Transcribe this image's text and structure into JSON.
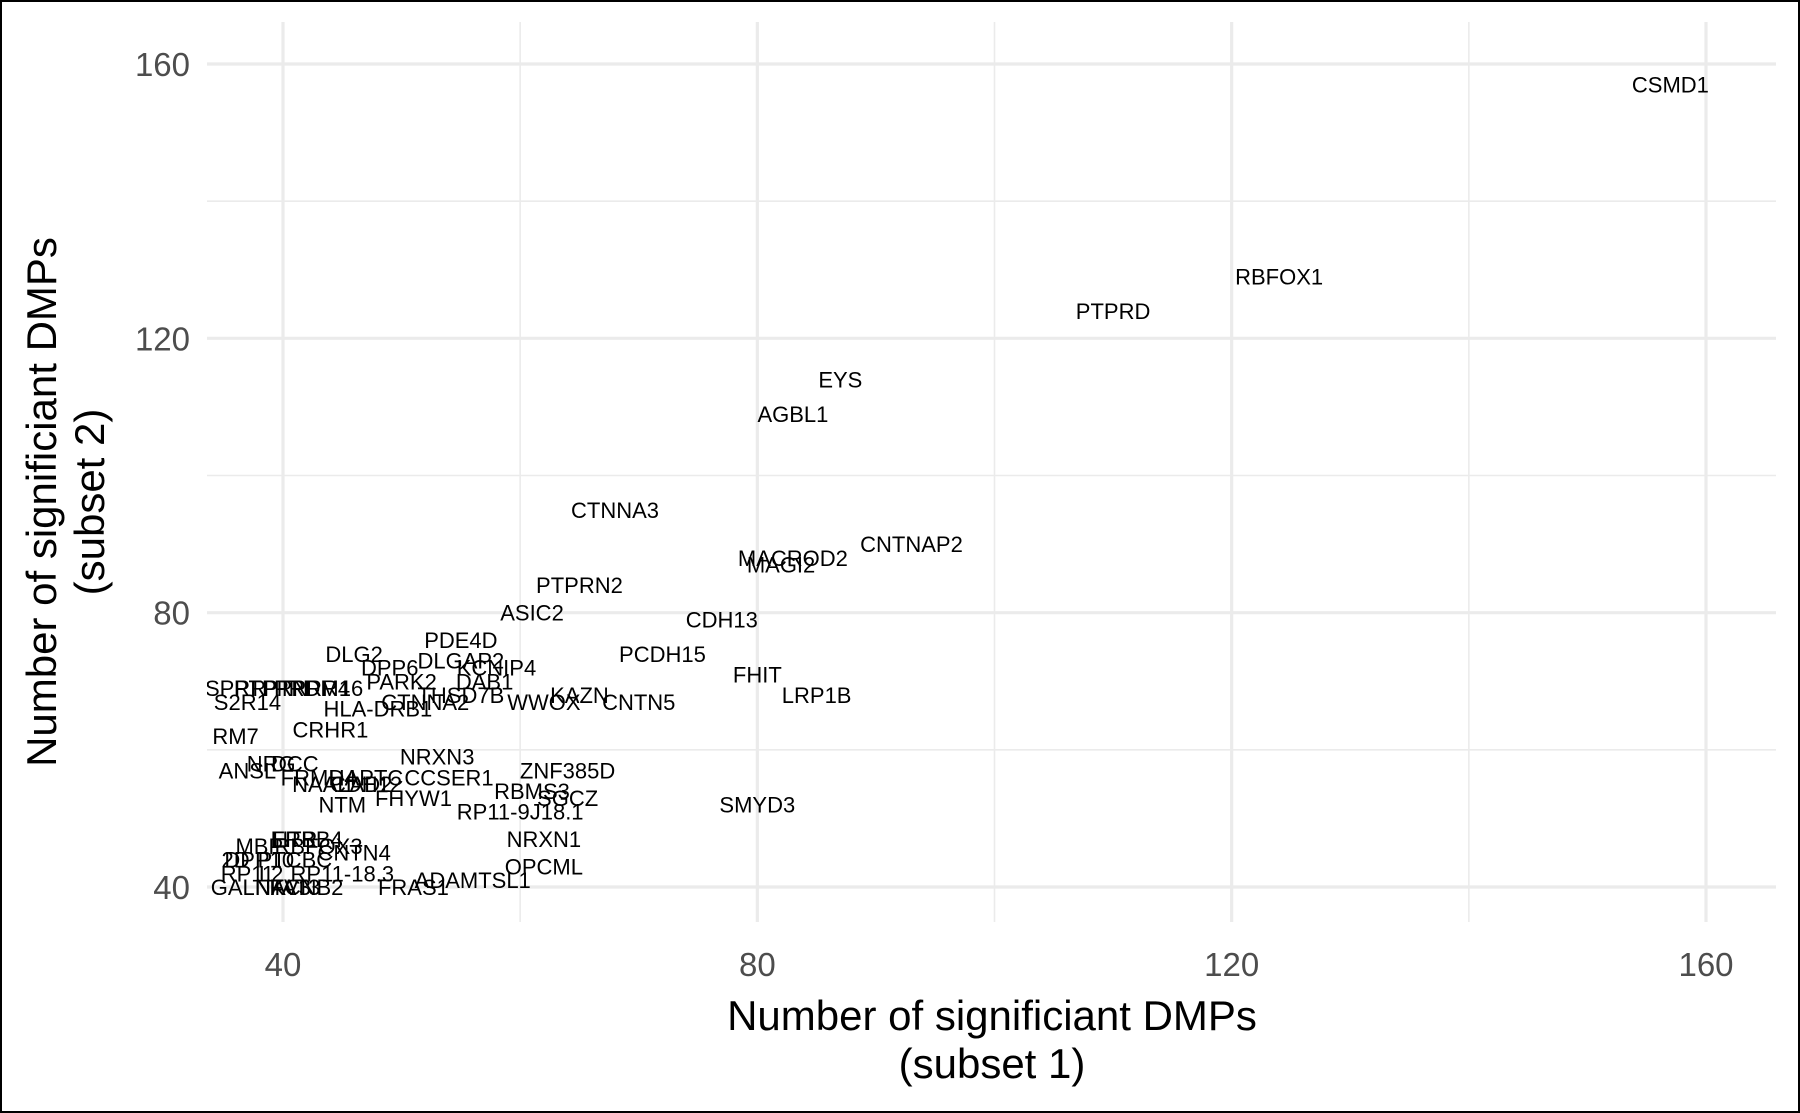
{
  "chart_data": {
    "type": "scatter",
    "title": "",
    "xlabel": [
      "Number of significiant DMPs",
      "(subset 1)"
    ],
    "ylabel": [
      "Number of significiant DMPs",
      "(subset 2)"
    ],
    "xlim": [
      40,
      160
    ],
    "ylim": [
      40,
      160
    ],
    "x_ticks": [
      40,
      80,
      120,
      160
    ],
    "y_ticks": [
      40,
      80,
      120,
      160
    ],
    "grid": true,
    "points": [
      {
        "label": "CSMD1",
        "x": 157,
        "y": 157
      },
      {
        "label": "RBFOX1",
        "x": 124,
        "y": 129
      },
      {
        "label": "PTPRD",
        "x": 110,
        "y": 124
      },
      {
        "label": "EYS",
        "x": 87,
        "y": 114
      },
      {
        "label": "AGBL1",
        "x": 83,
        "y": 109
      },
      {
        "label": "CTNNA3",
        "x": 68,
        "y": 95
      },
      {
        "label": "CNTNAP2",
        "x": 93,
        "y": 90
      },
      {
        "label": "MACROD2",
        "x": 83,
        "y": 88
      },
      {
        "label": "MAGI2",
        "x": 82,
        "y": 87
      },
      {
        "label": "PTPRN2",
        "x": 65,
        "y": 84
      },
      {
        "label": "ASIC2",
        "x": 61,
        "y": 80
      },
      {
        "label": "CDH13",
        "x": 77,
        "y": 79
      },
      {
        "label": "PDE4D",
        "x": 55,
        "y": 76
      },
      {
        "label": "PCDH15",
        "x": 72,
        "y": 74
      },
      {
        "label": "DLG2",
        "x": 46,
        "y": 74
      },
      {
        "label": "DLGAP2",
        "x": 55,
        "y": 73
      },
      {
        "label": "KCNIP4",
        "x": 58,
        "y": 72
      },
      {
        "label": "DPP6",
        "x": 49,
        "y": 72
      },
      {
        "label": "FHIT",
        "x": 80,
        "y": 71
      },
      {
        "label": "DAB1",
        "x": 57,
        "y": 70
      },
      {
        "label": "PARK2",
        "x": 50,
        "y": 70
      },
      {
        "label": "PRDM16",
        "x": 43,
        "y": 69
      },
      {
        "label": "PTPRR4",
        "x": 42,
        "y": 69
      },
      {
        "label": "PTPRN",
        "x": 39,
        "y": 69
      },
      {
        "label": "SPRR",
        "x": 36,
        "y": 69
      },
      {
        "label": "LRP1B",
        "x": 85,
        "y": 68
      },
      {
        "label": "KAZN",
        "x": 65,
        "y": 68
      },
      {
        "label": "THSD7B",
        "x": 55,
        "y": 68
      },
      {
        "label": "S2R14",
        "x": 37,
        "y": 67
      },
      {
        "label": "CTNNA2",
        "x": 52,
        "y": 67
      },
      {
        "label": "WWOX",
        "x": 62,
        "y": 67
      },
      {
        "label": "CNTN5",
        "x": 70,
        "y": 67
      },
      {
        "label": "HLA-DRB1",
        "x": 48,
        "y": 66
      },
      {
        "label": "CRHR1",
        "x": 44,
        "y": 63
      },
      {
        "label": "RM7",
        "x": 36,
        "y": 62
      },
      {
        "label": "NRXN3",
        "x": 53,
        "y": 59
      },
      {
        "label": "DCC",
        "x": 41,
        "y": 58
      },
      {
        "label": "NRG",
        "x": 39,
        "y": 58
      },
      {
        "label": "ZNF385D",
        "x": 64,
        "y": 57
      },
      {
        "label": "ANSL",
        "x": 37,
        "y": 57
      },
      {
        "label": "CCSER1",
        "x": 54,
        "y": 56
      },
      {
        "label": "HAPTC",
        "x": 47,
        "y": 56
      },
      {
        "label": "FRMD4",
        "x": 43,
        "y": 56
      },
      {
        "label": "NAALAD2",
        "x": 45,
        "y": 55
      },
      {
        "label": "RBMS3",
        "x": 61,
        "y": 54
      },
      {
        "label": "CDH12",
        "x": 47,
        "y": 55
      },
      {
        "label": "SGCZ",
        "x": 64,
        "y": 53
      },
      {
        "label": "FHYW1",
        "x": 51,
        "y": 53
      },
      {
        "label": "NTM",
        "x": 45,
        "y": 52
      },
      {
        "label": "SMYD3",
        "x": 80,
        "y": 52
      },
      {
        "label": "RP11-9J18.1",
        "x": 60,
        "y": 51
      },
      {
        "label": "NRXN1",
        "x": 62,
        "y": 47
      },
      {
        "label": "HTR",
        "x": 41,
        "y": 47
      },
      {
        "label": "ERBB4",
        "x": 42,
        "y": 47
      },
      {
        "label": "RBFOX3",
        "x": 43,
        "y": 46
      },
      {
        "label": "MBP",
        "x": 38,
        "y": 46
      },
      {
        "label": "CNTN4",
        "x": 46,
        "y": 45
      },
      {
        "label": "DPP10",
        "x": 38,
        "y": 44
      },
      {
        "label": "PTCBC",
        "x": 41,
        "y": 44
      },
      {
        "label": "OPCML",
        "x": 62,
        "y": 43
      },
      {
        "label": "2D",
        "x": 36,
        "y": 44
      },
      {
        "label": "RP11",
        "x": 37,
        "y": 42
      },
      {
        "label": "L2",
        "x": 39,
        "y": 42
      },
      {
        "label": "RP11-18.3",
        "x": 45,
        "y": 42
      },
      {
        "label": "ADAMTSL1",
        "x": 56,
        "y": 41
      },
      {
        "label": "FRAS1",
        "x": 51,
        "y": 40
      },
      {
        "label": "GALNT",
        "x": 37,
        "y": 40
      },
      {
        "label": "NAV3",
        "x": 40,
        "y": 40
      },
      {
        "label": "FAT3",
        "x": 41,
        "y": 40
      },
      {
        "label": "KCNB2",
        "x": 42,
        "y": 40
      }
    ]
  }
}
